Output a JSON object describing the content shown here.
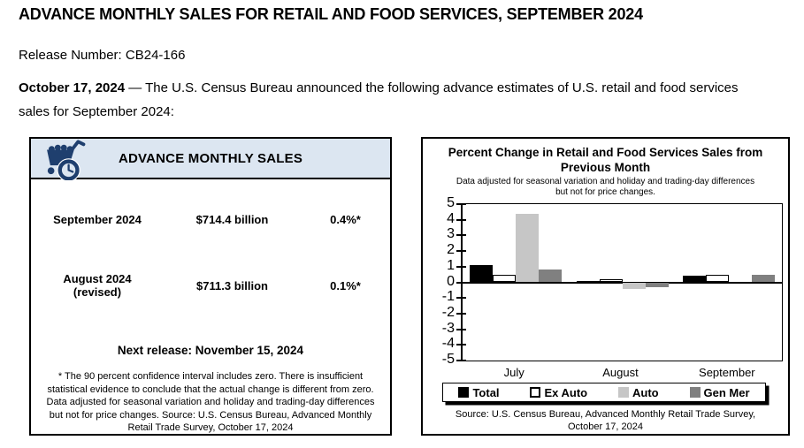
{
  "header": {
    "title": "ADVANCE MONTHLY SALES FOR RETAIL AND FOOD SERVICES, SEPTEMBER 2024",
    "release_number": "Release Number: CB24-166",
    "intro_date": "October 17, 2024",
    "intro_text": "— The U.S. Census Bureau announced the following advance estimates of U.S. retail and food services sales for September 2024:"
  },
  "sales_box": {
    "title": "ADVANCE MONTHLY SALES",
    "icon": "cart-clock-icon",
    "header_bg": "#dce6f1",
    "icon_color": "#1f3f6e",
    "rows": [
      {
        "period": "September 2024",
        "period_note": "",
        "value": "$714.4 billion",
        "change": "0.4%*"
      },
      {
        "period": "August 2024",
        "period_note": "(revised)",
        "value": "$711.3 billion",
        "change": "0.1%*"
      }
    ],
    "next_release": "Next release: November 15, 2024",
    "footnote_1": "* The 90 percent confidence interval includes zero. There is insufficient statistical evidence to conclude that the actual change is different from zero.",
    "footnote_2": "Data adjusted for seasonal variation and holiday and trading-day differences but not for price changes. Source: U.S. Census Bureau, Advanced Monthly Retail Trade Survey, October 17, 2024"
  },
  "chart_data": {
    "type": "bar",
    "title": "Percent Change in Retail and Food Services Sales from Previous Month",
    "subtitle": "Data adjusted for seasonal variation and holiday and trading-day differences but not for price changes.",
    "categories": [
      "July",
      "August",
      "September"
    ],
    "series": [
      {
        "name": "Total",
        "color": "#000000",
        "outlined": false,
        "values": [
          1.1,
          0.1,
          0.4
        ]
      },
      {
        "name": "Ex Auto",
        "color": "#ffffff",
        "outlined": true,
        "values": [
          0.5,
          0.2,
          0.5
        ]
      },
      {
        "name": "Auto",
        "color": "#c6c6c6",
        "outlined": false,
        "values": [
          4.4,
          -0.4,
          0.0
        ]
      },
      {
        "name": "Gen Mer",
        "color": "#808080",
        "outlined": false,
        "values": [
          0.8,
          -0.3,
          0.5
        ]
      }
    ],
    "ylim": [
      -5,
      5
    ],
    "yticks": [
      5,
      4,
      3,
      2,
      1,
      0,
      -1,
      -2,
      -3,
      -4,
      -5
    ],
    "grid": false,
    "legend_position": "bottom",
    "source": "Source: U.S. Census Bureau, Advanced Monthly Retail Trade Survey, October 17, 2024"
  }
}
